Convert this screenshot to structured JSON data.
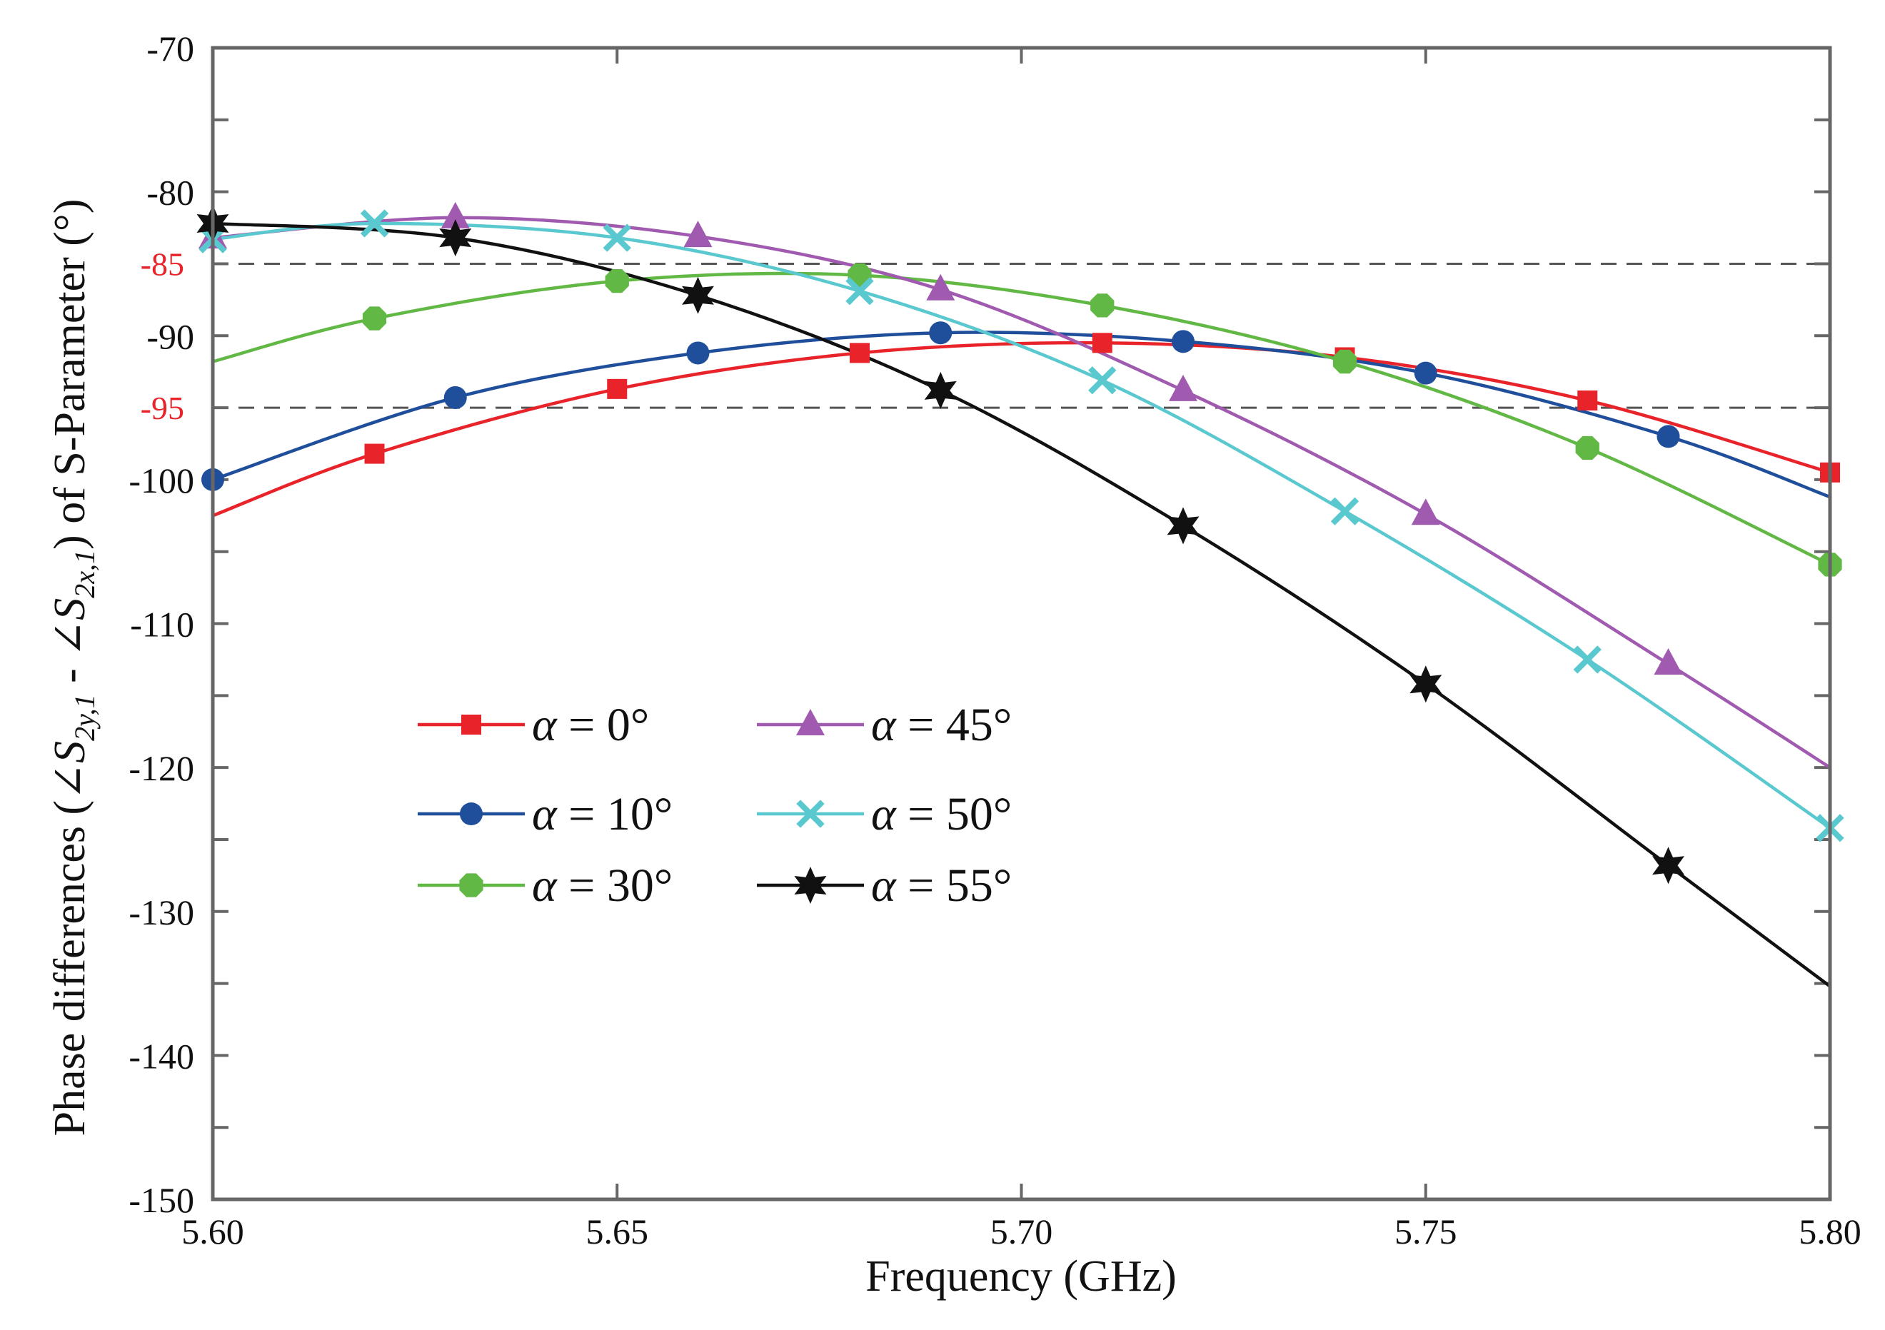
{
  "chart_data": {
    "type": "line",
    "xlabel": "Frequency (GHz)",
    "ylabel": {
      "prefix": "Phase differences (",
      "angle_symbol": "∠",
      "s_letter": "S",
      "sub1": "2y,1",
      "minus": " - ",
      "sub2": "2x,1",
      "suffix": ") of S-Parameter (°)"
    },
    "xlim": [
      5.6,
      5.8
    ],
    "ylim": [
      -150,
      -70
    ],
    "xticks": [
      5.6,
      5.65,
      5.7,
      5.75,
      5.8
    ],
    "xtick_labels": [
      "5.60",
      "5.65",
      "5.70",
      "5.75",
      "5.80"
    ],
    "yticks": [
      -70,
      -80,
      -90,
      -100,
      -110,
      -120,
      -130,
      -140,
      -150
    ],
    "ytick_labels": [
      "-70",
      "-80",
      "-90",
      "-100",
      "-110",
      "-120",
      "-130",
      "-140",
      "-150"
    ],
    "reference_lines": [
      {
        "y": -85,
        "label": "-85",
        "style": "dashed"
      },
      {
        "y": -95,
        "label": "-95",
        "style": "dashed"
      }
    ],
    "legend": {
      "alpha_symbol": "α",
      "location": "center-left"
    },
    "series": [
      {
        "name": "α = 0°",
        "value_text": " = 0°",
        "color": "#e8232a",
        "marker": "square",
        "x": [
          5.6,
          5.62,
          5.65,
          5.68,
          5.71,
          5.74,
          5.77,
          5.8
        ],
        "y": [
          -102.5,
          -98.2,
          -93.7,
          -91.2,
          -90.5,
          -91.5,
          -94.5,
          -99.5
        ],
        "marker_x": [
          5.62,
          5.65,
          5.68,
          5.71,
          5.74,
          5.77,
          5.8
        ],
        "marker_y": [
          -98.2,
          -93.7,
          -91.2,
          -90.5,
          -91.5,
          -94.5,
          -99.5
        ]
      },
      {
        "name": "α = 10°",
        "value_text": " = 10°",
        "color": "#1f4e9b",
        "marker": "circle",
        "x": [
          5.6,
          5.63,
          5.66,
          5.69,
          5.72,
          5.75,
          5.78,
          5.8
        ],
        "y": [
          -100.0,
          -94.3,
          -91.2,
          -89.8,
          -90.4,
          -92.6,
          -97.0,
          -101.2
        ],
        "marker_x": [
          5.6,
          5.63,
          5.66,
          5.69,
          5.72,
          5.75,
          5.78
        ],
        "marker_y": [
          -100.0,
          -94.3,
          -91.2,
          -89.8,
          -90.4,
          -92.6,
          -97.0
        ]
      },
      {
        "name": "α = 30°",
        "value_text": " = 30°",
        "color": "#62b845",
        "marker": "octagon",
        "x": [
          5.6,
          5.62,
          5.65,
          5.68,
          5.71,
          5.74,
          5.77,
          5.8
        ],
        "y": [
          -91.8,
          -88.8,
          -86.2,
          -85.8,
          -87.9,
          -91.8,
          -97.8,
          -105.9
        ],
        "marker_x": [
          5.62,
          5.65,
          5.68,
          5.71,
          5.74,
          5.77,
          5.8
        ],
        "marker_y": [
          -88.8,
          -86.2,
          -85.8,
          -87.9,
          -91.8,
          -97.8,
          -105.9
        ]
      },
      {
        "name": "α = 45°",
        "value_text": " = 45°",
        "color": "#a05bb0",
        "marker": "triangle",
        "x": [
          5.6,
          5.63,
          5.66,
          5.69,
          5.72,
          5.75,
          5.78,
          5.8
        ],
        "y": [
          -83.2,
          -81.8,
          -83.1,
          -86.8,
          -93.8,
          -102.4,
          -112.8,
          -120.0
        ],
        "marker_x": [
          5.6,
          5.63,
          5.66,
          5.69,
          5.72,
          5.75,
          5.78
        ],
        "marker_y": [
          -83.2,
          -81.8,
          -83.1,
          -86.8,
          -93.8,
          -102.4,
          -112.8
        ]
      },
      {
        "name": "α = 50°",
        "value_text": " = 50°",
        "color": "#5ac8cf",
        "marker": "x",
        "x": [
          5.6,
          5.62,
          5.65,
          5.68,
          5.71,
          5.74,
          5.77,
          5.8
        ],
        "y": [
          -83.3,
          -82.2,
          -83.2,
          -86.9,
          -93.1,
          -102.2,
          -112.5,
          -124.2
        ],
        "marker_x": [
          5.6,
          5.62,
          5.65,
          5.68,
          5.71,
          5.74,
          5.77,
          5.8
        ],
        "marker_y": [
          -83.3,
          -82.2,
          -83.2,
          -86.9,
          -93.1,
          -102.2,
          -112.5,
          -124.2
        ]
      },
      {
        "name": "α = 55°",
        "value_text": " = 55°",
        "color": "#111111",
        "marker": "star6",
        "x": [
          5.6,
          5.63,
          5.66,
          5.69,
          5.72,
          5.75,
          5.78,
          5.8
        ],
        "y": [
          -82.2,
          -83.2,
          -87.2,
          -93.8,
          -103.2,
          -114.2,
          -126.8,
          -135.2
        ],
        "marker_x": [
          5.6,
          5.63,
          5.66,
          5.69,
          5.72,
          5.75,
          5.78
        ],
        "marker_y": [
          -82.2,
          -83.2,
          -87.2,
          -93.8,
          -103.2,
          -114.2,
          -126.8
        ]
      }
    ]
  }
}
